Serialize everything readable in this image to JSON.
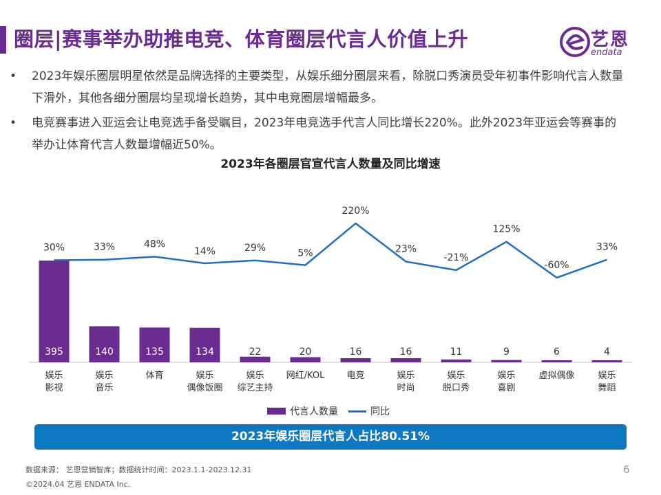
{
  "header": {
    "title": "圈层|赛事举办助推电竞、体育圈层代言人价值上升"
  },
  "logo": {
    "cn": "艺恩",
    "en": "endata"
  },
  "bullets": [
    "2023年娱乐圈层明星依然是品牌选择的主要类型，从娱乐细分圈层来看，除脱口秀演员受年初事件影响代言人数量下滑外，其他各细分圈层均呈现增长趋势，其中电竞圈层增幅最多。",
    "电竞赛事进入亚运会让电竞选手备受瞩目，2023年电竞选手代言人同比增长220%。此外2023年亚运会等赛事的举办让体育代言人数量增幅近50%。"
  ],
  "chart_data": {
    "type": "bar",
    "title": "2023年各圈层官宣代言人数量及同比增速",
    "categories": [
      [
        "娱乐",
        "影视"
      ],
      [
        "娱乐",
        "音乐"
      ],
      [
        "体育"
      ],
      [
        "娱乐",
        "偶像饭圈"
      ],
      [
        "娱乐",
        "综艺主持"
      ],
      [
        "网红/KOL"
      ],
      [
        "电竞"
      ],
      [
        "娱乐",
        "时尚"
      ],
      [
        "娱乐",
        "脱口秀"
      ],
      [
        "娱乐",
        "喜剧"
      ],
      [
        "虚拟偶像"
      ],
      [
        "娱乐",
        "舞蹈"
      ]
    ],
    "series": [
      {
        "name": "代言人数量",
        "type": "bar",
        "color": "#6a2c91",
        "values": [
          395,
          140,
          135,
          134,
          22,
          20,
          16,
          16,
          11,
          9,
          6,
          4
        ],
        "labels": [
          "395",
          "140",
          "135",
          "134",
          "22",
          "20",
          "16",
          "16",
          "11",
          "9",
          "6",
          "4"
        ]
      },
      {
        "name": "同比",
        "type": "line",
        "color": "#1e6fc1",
        "values": [
          30,
          33,
          48,
          14,
          29,
          5,
          220,
          23,
          -21,
          125,
          -60,
          33
        ],
        "labels": [
          "30%",
          "33%",
          "48%",
          "14%",
          "29%",
          "5%",
          "220%",
          "23%",
          "-21%",
          "125%",
          "-60%",
          "33%"
        ]
      }
    ],
    "legend": "bottom",
    "grid": false
  },
  "highlight": {
    "text": "2023年娱乐圈层代言人占比80.51%"
  },
  "footer": {
    "source": "数据来源： 艺恩营销智库；数据统计时间：2023.1.1-2023.12.31",
    "copyright": "©2024.04 艺恩 ENDATA Inc.",
    "page_number": "6"
  },
  "colors": {
    "brand_purple": "#6a2c91",
    "line_blue": "#1e6fc1",
    "banner_blue": "#0f78c2"
  }
}
